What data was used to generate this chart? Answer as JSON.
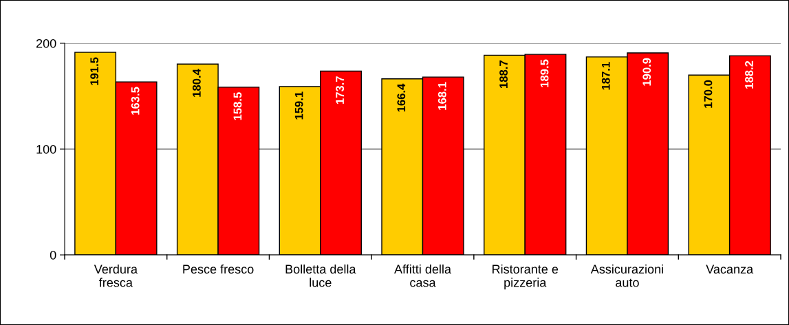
{
  "chart_data": {
    "type": "bar",
    "categories": [
      "Verdura\nfresca",
      "Pesce fresco",
      "Bolletta della\nluce",
      "Affitti della\ncasa",
      "Ristorante e\npizzeria",
      "Assicurazioni\nauto",
      "Vacanza"
    ],
    "series": [
      {
        "color": "#ffcc00",
        "values": [
          191.5,
          180.4,
          159.1,
          166.4,
          188.7,
          187.1,
          170.0
        ],
        "value_labels": [
          "191.5",
          "180.4",
          "159.1",
          "166.4",
          "188.7",
          "187.1",
          "170.0"
        ]
      },
      {
        "color": "#ff0000",
        "values": [
          163.5,
          158.5,
          173.7,
          168.1,
          189.5,
          190.9,
          188.2
        ],
        "value_labels": [
          "163.5",
          "158.5",
          "173.7",
          "168.1",
          "189.5",
          "190.9",
          "188.2"
        ]
      }
    ],
    "ylim": [
      0,
      200
    ],
    "yticks": [
      0,
      100,
      200
    ],
    "grid": "y",
    "legend": false
  }
}
